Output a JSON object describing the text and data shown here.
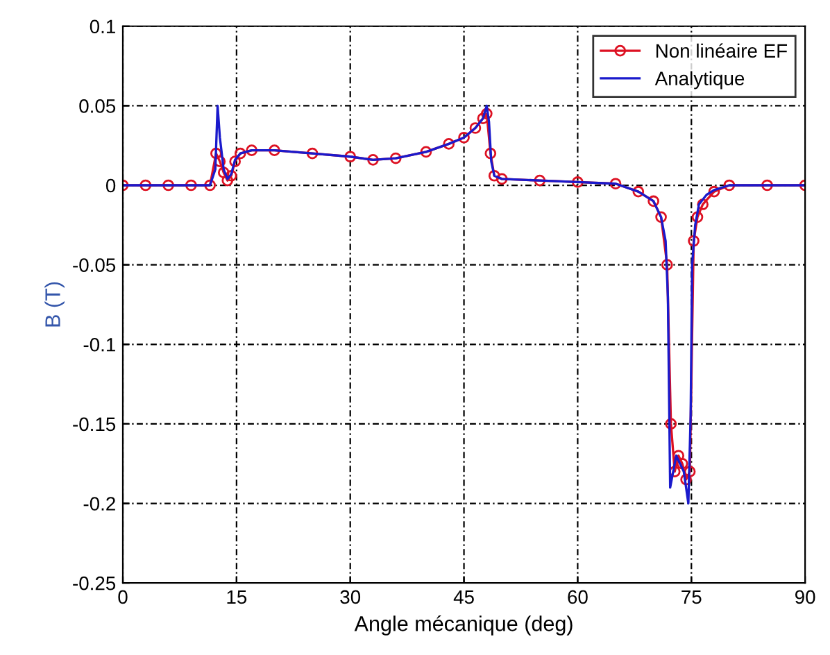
{
  "chart_data": {
    "type": "line",
    "xlabel": "Angle mécanique (deg)",
    "ylabel": "B (T)",
    "xlim": [
      0,
      90
    ],
    "xticks": [
      0,
      15,
      30,
      45,
      60,
      75,
      90
    ],
    "ylim": [
      -0.25,
      0.1
    ],
    "yticks": [
      -0.25,
      -0.2,
      -0.15,
      -0.1,
      -0.05,
      0,
      0.05,
      0.1
    ],
    "grid": true,
    "legend": "top right",
    "series": [
      {
        "name": "Non linéaire EF",
        "color": "#dd1122",
        "marker": "circle",
        "line_style": "solid",
        "x": [
          0,
          3,
          6,
          9,
          11.5,
          12.3,
          12.8,
          13.3,
          13.8,
          14.3,
          14.8,
          15.5,
          17,
          20,
          25,
          30,
          33,
          36,
          40,
          43,
          45,
          46.5,
          47.5,
          48,
          48.5,
          49,
          50,
          55,
          60,
          65,
          68,
          70,
          71,
          71.8,
          72.3,
          72.8,
          73.3,
          73.8,
          74.3,
          74.8,
          75.3,
          75.8,
          76.5,
          78,
          80,
          85,
          90
        ],
        "values": [
          0,
          0,
          0,
          0,
          0,
          0.02,
          0.015,
          0.008,
          0.003,
          0.006,
          0.015,
          0.02,
          0.022,
          0.022,
          0.02,
          0.018,
          0.016,
          0.017,
          0.021,
          0.026,
          0.03,
          0.036,
          0.042,
          0.045,
          0.02,
          0.006,
          0.004,
          0.003,
          0.002,
          0.001,
          -0.004,
          -0.01,
          -0.02,
          -0.05,
          -0.15,
          -0.18,
          -0.17,
          -0.175,
          -0.185,
          -0.18,
          -0.035,
          -0.02,
          -0.012,
          -0.004,
          0,
          0,
          0
        ]
      },
      {
        "name": "Analytique",
        "color": "#1a1acc",
        "marker": "none",
        "line_style": "solid",
        "x": [
          0,
          3,
          6,
          9,
          11.5,
          12.2,
          12.5,
          12.8,
          13.3,
          13.8,
          14.3,
          14.8,
          15.5,
          17,
          20,
          25,
          30,
          33,
          36,
          40,
          43,
          45,
          46.5,
          47.5,
          48,
          48.3,
          48.6,
          49,
          50,
          55,
          60,
          65,
          68,
          70,
          71,
          71.6,
          71.9,
          72.2,
          72.6,
          73,
          73.5,
          74,
          74.6,
          74.9,
          75.1,
          75.5,
          76,
          77,
          78,
          80,
          85,
          90
        ],
        "values": [
          0,
          0,
          0,
          0,
          0,
          0.01,
          0.05,
          0.03,
          0.01,
          0.004,
          0.007,
          0.016,
          0.02,
          0.022,
          0.022,
          0.02,
          0.018,
          0.016,
          0.017,
          0.021,
          0.026,
          0.03,
          0.036,
          0.042,
          0.05,
          0.04,
          0.015,
          0.006,
          0.004,
          0.003,
          0.002,
          0.001,
          -0.004,
          -0.01,
          -0.02,
          -0.035,
          -0.07,
          -0.19,
          -0.18,
          -0.17,
          -0.175,
          -0.18,
          -0.2,
          -0.145,
          -0.05,
          -0.025,
          -0.012,
          -0.006,
          -0.003,
          0,
          0,
          0
        ]
      }
    ]
  }
}
